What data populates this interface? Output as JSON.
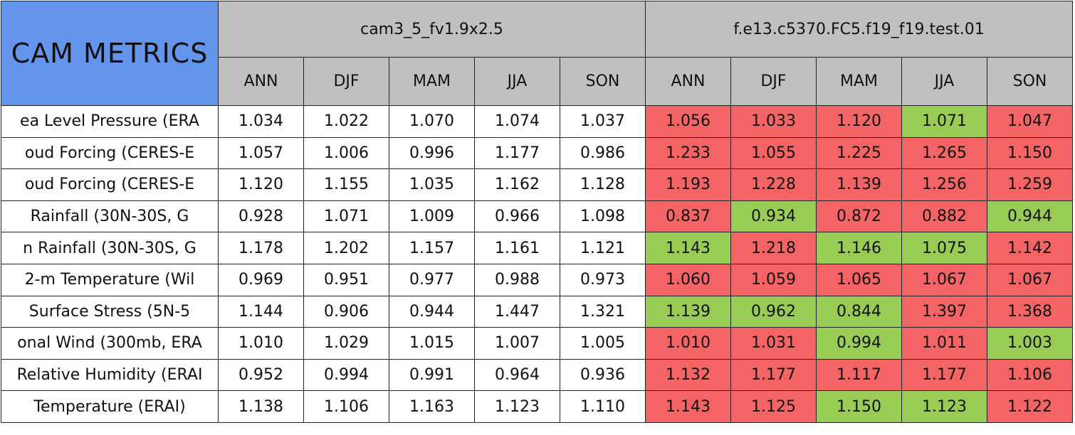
{
  "corner": "CAM METRICS",
  "groups": [
    "cam3_5_fv1.9x2.5",
    "f.e13.c5370.FC5.f19_f19.test.01"
  ],
  "seasons": [
    "ANN",
    "DJF",
    "MAM",
    "JJA",
    "SON"
  ],
  "colors": {
    "header": "#c0c0c0",
    "corner": "#6495ed",
    "worse": "#f46464",
    "better": "#99cc55",
    "plain": "#ffffff"
  },
  "rows": [
    {
      "label": "ea Level Pressure (ERA",
      "base": [
        "1.034",
        "1.022",
        "1.070",
        "1.074",
        "1.037"
      ],
      "test": [
        "1.056",
        "1.033",
        "1.120",
        "1.071",
        "1.047"
      ],
      "test_status": [
        "worse",
        "worse",
        "worse",
        "better",
        "worse"
      ]
    },
    {
      "label": "oud Forcing (CERES-E",
      "base": [
        "1.057",
        "1.006",
        "0.996",
        "1.177",
        "0.986"
      ],
      "test": [
        "1.233",
        "1.055",
        "1.225",
        "1.265",
        "1.150"
      ],
      "test_status": [
        "worse",
        "worse",
        "worse",
        "worse",
        "worse"
      ]
    },
    {
      "label": "oud Forcing (CERES-E",
      "base": [
        "1.120",
        "1.155",
        "1.035",
        "1.162",
        "1.128"
      ],
      "test": [
        "1.193",
        "1.228",
        "1.139",
        "1.256",
        "1.259"
      ],
      "test_status": [
        "worse",
        "worse",
        "worse",
        "worse",
        "worse"
      ]
    },
    {
      "label": "Rainfall (30N-30S, G",
      "base": [
        "0.928",
        "1.071",
        "1.009",
        "0.966",
        "1.098"
      ],
      "test": [
        "0.837",
        "0.934",
        "0.872",
        "0.882",
        "0.944"
      ],
      "test_status": [
        "worse",
        "better",
        "worse",
        "worse",
        "better"
      ]
    },
    {
      "label": "n Rainfall (30N-30S, G",
      "base": [
        "1.178",
        "1.202",
        "1.157",
        "1.161",
        "1.121"
      ],
      "test": [
        "1.143",
        "1.218",
        "1.146",
        "1.075",
        "1.142"
      ],
      "test_status": [
        "better",
        "worse",
        "better",
        "better",
        "worse"
      ]
    },
    {
      "label": "2-m Temperature (Wil",
      "base": [
        "0.969",
        "0.951",
        "0.977",
        "0.988",
        "0.973"
      ],
      "test": [
        "1.060",
        "1.059",
        "1.065",
        "1.067",
        "1.067"
      ],
      "test_status": [
        "worse",
        "worse",
        "worse",
        "worse",
        "worse"
      ]
    },
    {
      "label": "Surface Stress (5N-5",
      "base": [
        "1.144",
        "0.906",
        "0.944",
        "1.447",
        "1.321"
      ],
      "test": [
        "1.139",
        "0.962",
        "0.844",
        "1.397",
        "1.368"
      ],
      "test_status": [
        "better",
        "better",
        "better",
        "worse",
        "worse"
      ]
    },
    {
      "label": "onal Wind (300mb, ERA",
      "base": [
        "1.010",
        "1.029",
        "1.015",
        "1.007",
        "1.005"
      ],
      "test": [
        "1.010",
        "1.031",
        "0.994",
        "1.011",
        "1.003"
      ],
      "test_status": [
        "worse",
        "worse",
        "better",
        "worse",
        "better"
      ]
    },
    {
      "label": "Relative Humidity (ERAI",
      "base": [
        "0.952",
        "0.994",
        "0.991",
        "0.964",
        "0.936"
      ],
      "test": [
        "1.132",
        "1.177",
        "1.117",
        "1.177",
        "1.106"
      ],
      "test_status": [
        "worse",
        "worse",
        "worse",
        "worse",
        "worse"
      ]
    },
    {
      "label": "Temperature (ERAI)",
      "base": [
        "1.138",
        "1.106",
        "1.163",
        "1.123",
        "1.110"
      ],
      "test": [
        "1.143",
        "1.125",
        "1.150",
        "1.123",
        "1.122"
      ],
      "test_status": [
        "worse",
        "worse",
        "better",
        "better",
        "worse"
      ]
    }
  ]
}
